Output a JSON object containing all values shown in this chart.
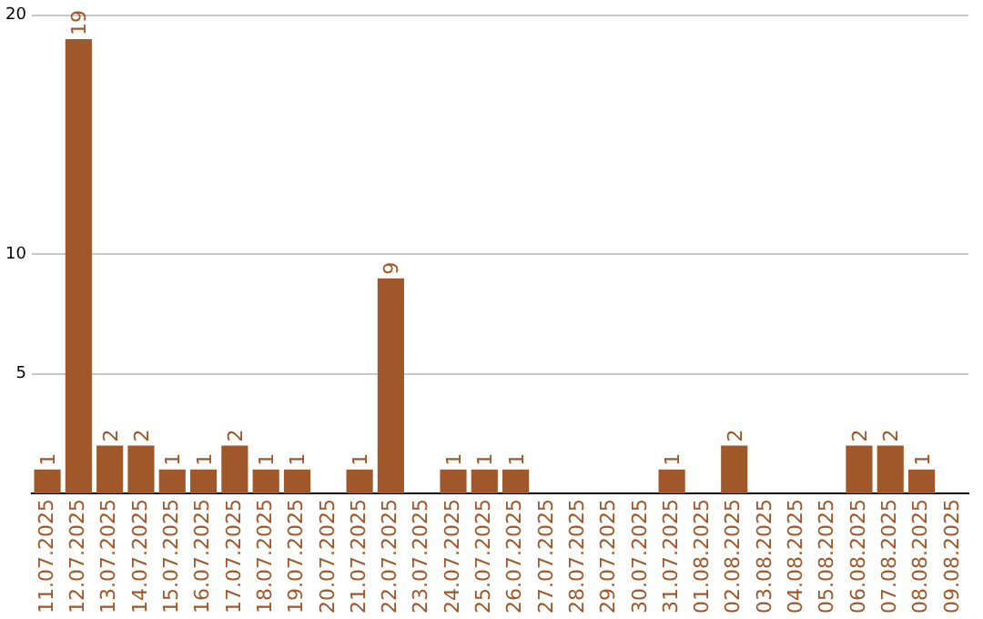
{
  "chart_data": {
    "type": "bar",
    "categories": [
      "11.07.2025",
      "12.07.2025",
      "13.07.2025",
      "14.07.2025",
      "15.07.2025",
      "16.07.2025",
      "17.07.2025",
      "18.07.2025",
      "19.07.2025",
      "20.07.2025",
      "21.07.2025",
      "22.07.2025",
      "23.07.2025",
      "24.07.2025",
      "25.07.2025",
      "26.07.2025",
      "27.07.2025",
      "28.07.2025",
      "29.07.2025",
      "30.07.2025",
      "31.07.2025",
      "01.08.2025",
      "02.08.2025",
      "03.08.2025",
      "04.08.2025",
      "05.08.2025",
      "06.08.2025",
      "07.08.2025",
      "08.08.2025",
      "09.08.2025"
    ],
    "values": [
      1,
      19,
      2,
      2,
      1,
      1,
      2,
      1,
      1,
      0,
      1,
      9,
      0,
      1,
      1,
      1,
      0,
      0,
      0,
      0,
      1,
      0,
      2,
      0,
      0,
      0,
      2,
      2,
      1,
      0
    ],
    "value_labels": [
      "1",
      "19",
      "2",
      "2",
      "1",
      "1",
      "2",
      "1",
      "1",
      null,
      "1",
      "9",
      null,
      "1",
      "1",
      "1",
      null,
      null,
      null,
      null,
      "1",
      null,
      "2",
      null,
      null,
      null,
      "2",
      "2",
      "1",
      null
    ],
    "color": "#a0582a",
    "ylim": [
      0,
      20
    ],
    "yticks": [
      5,
      10,
      20
    ],
    "grid": "y",
    "legend": false
  }
}
